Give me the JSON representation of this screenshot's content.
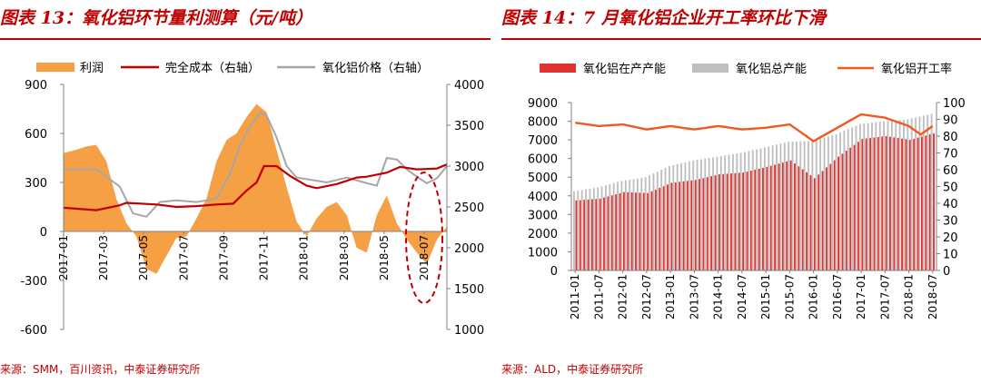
{
  "left": {
    "title": "图表 13：氧化铝环节量利测算（元/吨）",
    "source": "来源：SMM，百川资讯，中泰证券研究所"
  },
  "right": {
    "title": "图表 14：7 月氧化铝企业开工率环比下滑",
    "source": "来源：ALD，中泰证券研究所"
  },
  "chart_data": [
    {
      "type": "area",
      "title": "",
      "series": [
        {
          "name": "利润",
          "type": "area",
          "axis": "left",
          "color": "#f5a044",
          "x": [
            "2017-01-01",
            "2017-01-20",
            "2017-02-05",
            "2017-02-20",
            "2017-03-05",
            "2017-03-20",
            "2017-04-05",
            "2017-04-20",
            "2017-05-05",
            "2017-05-20",
            "2017-06-05",
            "2017-06-20",
            "2017-07-05",
            "2017-07-20",
            "2017-08-05",
            "2017-08-20",
            "2017-09-05",
            "2017-09-20",
            "2017-10-05",
            "2017-10-20",
            "2017-11-05",
            "2017-11-20",
            "2017-12-05",
            "2017-12-20",
            "2018-01-05",
            "2018-01-20",
            "2018-02-05",
            "2018-02-20",
            "2018-03-05",
            "2018-03-20",
            "2018-04-05",
            "2018-04-20",
            "2018-05-05",
            "2018-05-20",
            "2018-06-05",
            "2018-06-20",
            "2018-07-05",
            "2018-07-20",
            "2018-08-05"
          ],
          "values": [
            480,
            500,
            520,
            530,
            430,
            200,
            50,
            -30,
            -230,
            -260,
            -150,
            -40,
            -30,
            80,
            200,
            430,
            560,
            600,
            700,
            780,
            730,
            500,
            270,
            60,
            -30,
            80,
            150,
            180,
            100,
            -100,
            -130,
            100,
            220,
            50,
            -50,
            -130,
            -200,
            -50,
            30
          ]
        },
        {
          "name": "完全成本（右轴）",
          "type": "line",
          "axis": "right",
          "color": "#c00000",
          "x": [
            "2017-01-01",
            "2017-02-20",
            "2017-03-25",
            "2017-04-05",
            "2017-05-20",
            "2017-06-20",
            "2017-07-20",
            "2017-08-20",
            "2017-09-15",
            "2017-10-05",
            "2017-10-20",
            "2017-11-01",
            "2017-11-20",
            "2017-12-10",
            "2018-01-05",
            "2018-01-20",
            "2018-02-20",
            "2018-03-20",
            "2018-04-05",
            "2018-05-05",
            "2018-05-25",
            "2018-06-20",
            "2018-07-20",
            "2018-08-05"
          ],
          "values": [
            2490,
            2460,
            2520,
            2550,
            2530,
            2500,
            2510,
            2530,
            2540,
            2700,
            2800,
            3000,
            3000,
            2880,
            2760,
            2730,
            2780,
            2860,
            2870,
            2920,
            2990,
            2960,
            2970,
            3020
          ]
        },
        {
          "name": "氧化铝价格（右轴）",
          "type": "line",
          "axis": "right",
          "color": "#a6a6a6",
          "x": [
            "2017-01-01",
            "2017-02-20",
            "2017-03-25",
            "2017-04-15",
            "2017-05-05",
            "2017-05-25",
            "2017-06-20",
            "2017-07-20",
            "2017-08-20",
            "2017-09-10",
            "2017-09-25",
            "2017-10-10",
            "2017-10-25",
            "2017-11-05",
            "2017-11-20",
            "2017-12-05",
            "2017-12-20",
            "2018-01-05",
            "2018-02-05",
            "2018-03-05",
            "2018-04-01",
            "2018-04-20",
            "2018-05-05",
            "2018-05-20",
            "2018-06-05",
            "2018-06-20",
            "2018-07-05",
            "2018-07-20",
            "2018-08-05"
          ],
          "values": [
            2960,
            2960,
            2750,
            2420,
            2380,
            2560,
            2580,
            2560,
            2600,
            2900,
            3250,
            3480,
            3650,
            3620,
            3350,
            3000,
            2860,
            2840,
            2800,
            2860,
            2800,
            2760,
            3100,
            3080,
            2960,
            2870,
            2790,
            2850,
            3000
          ]
        }
      ],
      "legend": [
        "利润",
        "完全成本（右轴）",
        "氧化铝价格（右轴）"
      ],
      "legend_position": "top",
      "y_left": {
        "range": [
          -600,
          900
        ],
        "ticks": [
          -600,
          -300,
          0,
          300,
          600,
          900
        ]
      },
      "y_right": {
        "range": [
          1000,
          4000
        ],
        "ticks": [
          1000,
          1500,
          2000,
          2500,
          3000,
          3500,
          4000
        ]
      },
      "x_ticks": [
        "2017-01",
        "2017-03",
        "2017-05",
        "2017-07",
        "2017-09",
        "2017-11",
        "2018-01",
        "2018-03",
        "2018-05",
        "2018-07"
      ],
      "annotation": {
        "type": "dashed-ellipse",
        "color": "#c00000",
        "around": "2018-07"
      },
      "grid": false
    },
    {
      "type": "bar",
      "title": "",
      "categories_range": [
        "2011-01",
        "2018-07"
      ],
      "x_ticks": [
        "2011-01",
        "2011-07",
        "2012-01",
        "2012-07",
        "2013-01",
        "2013-07",
        "2014-01",
        "2014-07",
        "2015-01",
        "2015-07",
        "2016-01",
        "2016-07",
        "2017-01",
        "2017-07",
        "2018-01",
        "2018-07"
      ],
      "series": [
        {
          "name": "氧化铝在产产能",
          "type": "bar",
          "axis": "left",
          "color": "#e0322e",
          "anchors_x": [
            "2011-01",
            "2011-07",
            "2012-01",
            "2012-07",
            "2013-01",
            "2013-07",
            "2014-01",
            "2014-07",
            "2015-01",
            "2015-07",
            "2016-01",
            "2016-07",
            "2017-01",
            "2017-07",
            "2018-01",
            "2018-07"
          ],
          "anchors_values": [
            3750,
            3850,
            4200,
            4150,
            4700,
            4850,
            5150,
            5250,
            5550,
            5900,
            4950,
            6100,
            7050,
            7200,
            7000,
            7350
          ]
        },
        {
          "name": "氧化铝总产能",
          "type": "bar",
          "axis": "left",
          "color": "#bfbfbf",
          "anchors_x": [
            "2011-01",
            "2011-07",
            "2012-01",
            "2012-07",
            "2013-01",
            "2013-07",
            "2014-01",
            "2014-07",
            "2015-01",
            "2015-07",
            "2016-01",
            "2016-07",
            "2017-01",
            "2017-07",
            "2018-01",
            "2018-07"
          ],
          "anchors_values": [
            4250,
            4450,
            4800,
            5000,
            5600,
            5900,
            6100,
            6300,
            6600,
            6900,
            6950,
            7300,
            7850,
            8000,
            8100,
            8400
          ]
        },
        {
          "name": "氧化铝开工率",
          "type": "line",
          "axis": "right",
          "color": "#f05a22",
          "anchors_x": [
            "2011-01",
            "2011-07",
            "2012-01",
            "2012-07",
            "2013-01",
            "2013-07",
            "2014-01",
            "2014-07",
            "2015-01",
            "2015-07",
            "2016-01",
            "2016-07",
            "2017-01",
            "2017-07",
            "2018-01",
            "2018-04",
            "2018-07"
          ],
          "anchors_values": [
            88,
            86,
            87,
            84,
            86,
            84,
            86,
            84,
            85,
            87,
            77,
            85,
            93,
            91,
            86,
            81,
            86
          ]
        }
      ],
      "legend": [
        "氧化铝在产产能",
        "氧化铝总产能",
        "氧化铝开工率"
      ],
      "legend_position": "top",
      "y_left": {
        "range": [
          0,
          9000
        ],
        "ticks": [
          0,
          1000,
          2000,
          3000,
          4000,
          5000,
          6000,
          7000,
          8000,
          9000
        ]
      },
      "y_right": {
        "range": [
          0,
          100
        ],
        "ticks": [
          0,
          10,
          20,
          30,
          40,
          50,
          60,
          70,
          80,
          90,
          100
        ]
      },
      "grid": false
    }
  ]
}
